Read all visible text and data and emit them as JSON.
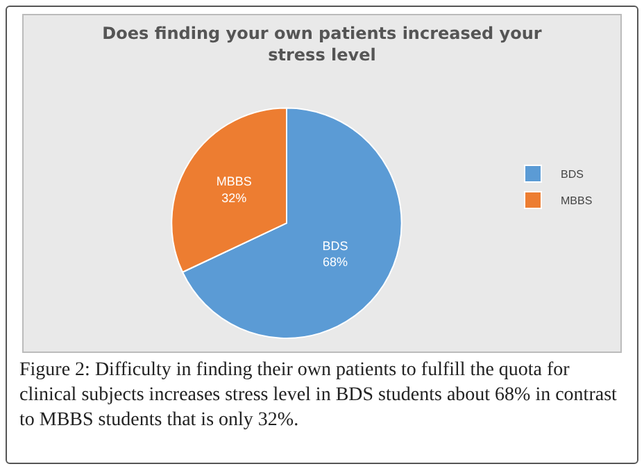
{
  "chart_data": {
    "type": "pie",
    "title": "Does finding your own patients increased your stress level",
    "categories": [
      "BDS",
      "MBBS"
    ],
    "values": [
      68,
      32
    ],
    "colors": [
      "#5b9bd5",
      "#ed7d31"
    ],
    "value_labels": [
      "68%",
      "32%"
    ],
    "legend": "right",
    "annotations": [
      "Figure 2: Difficulty in finding their own patients to fulfill the quota for clinical subjects increases stress level in BDS students about 68% in contrast to MBBS students that is only 32%."
    ]
  }
}
